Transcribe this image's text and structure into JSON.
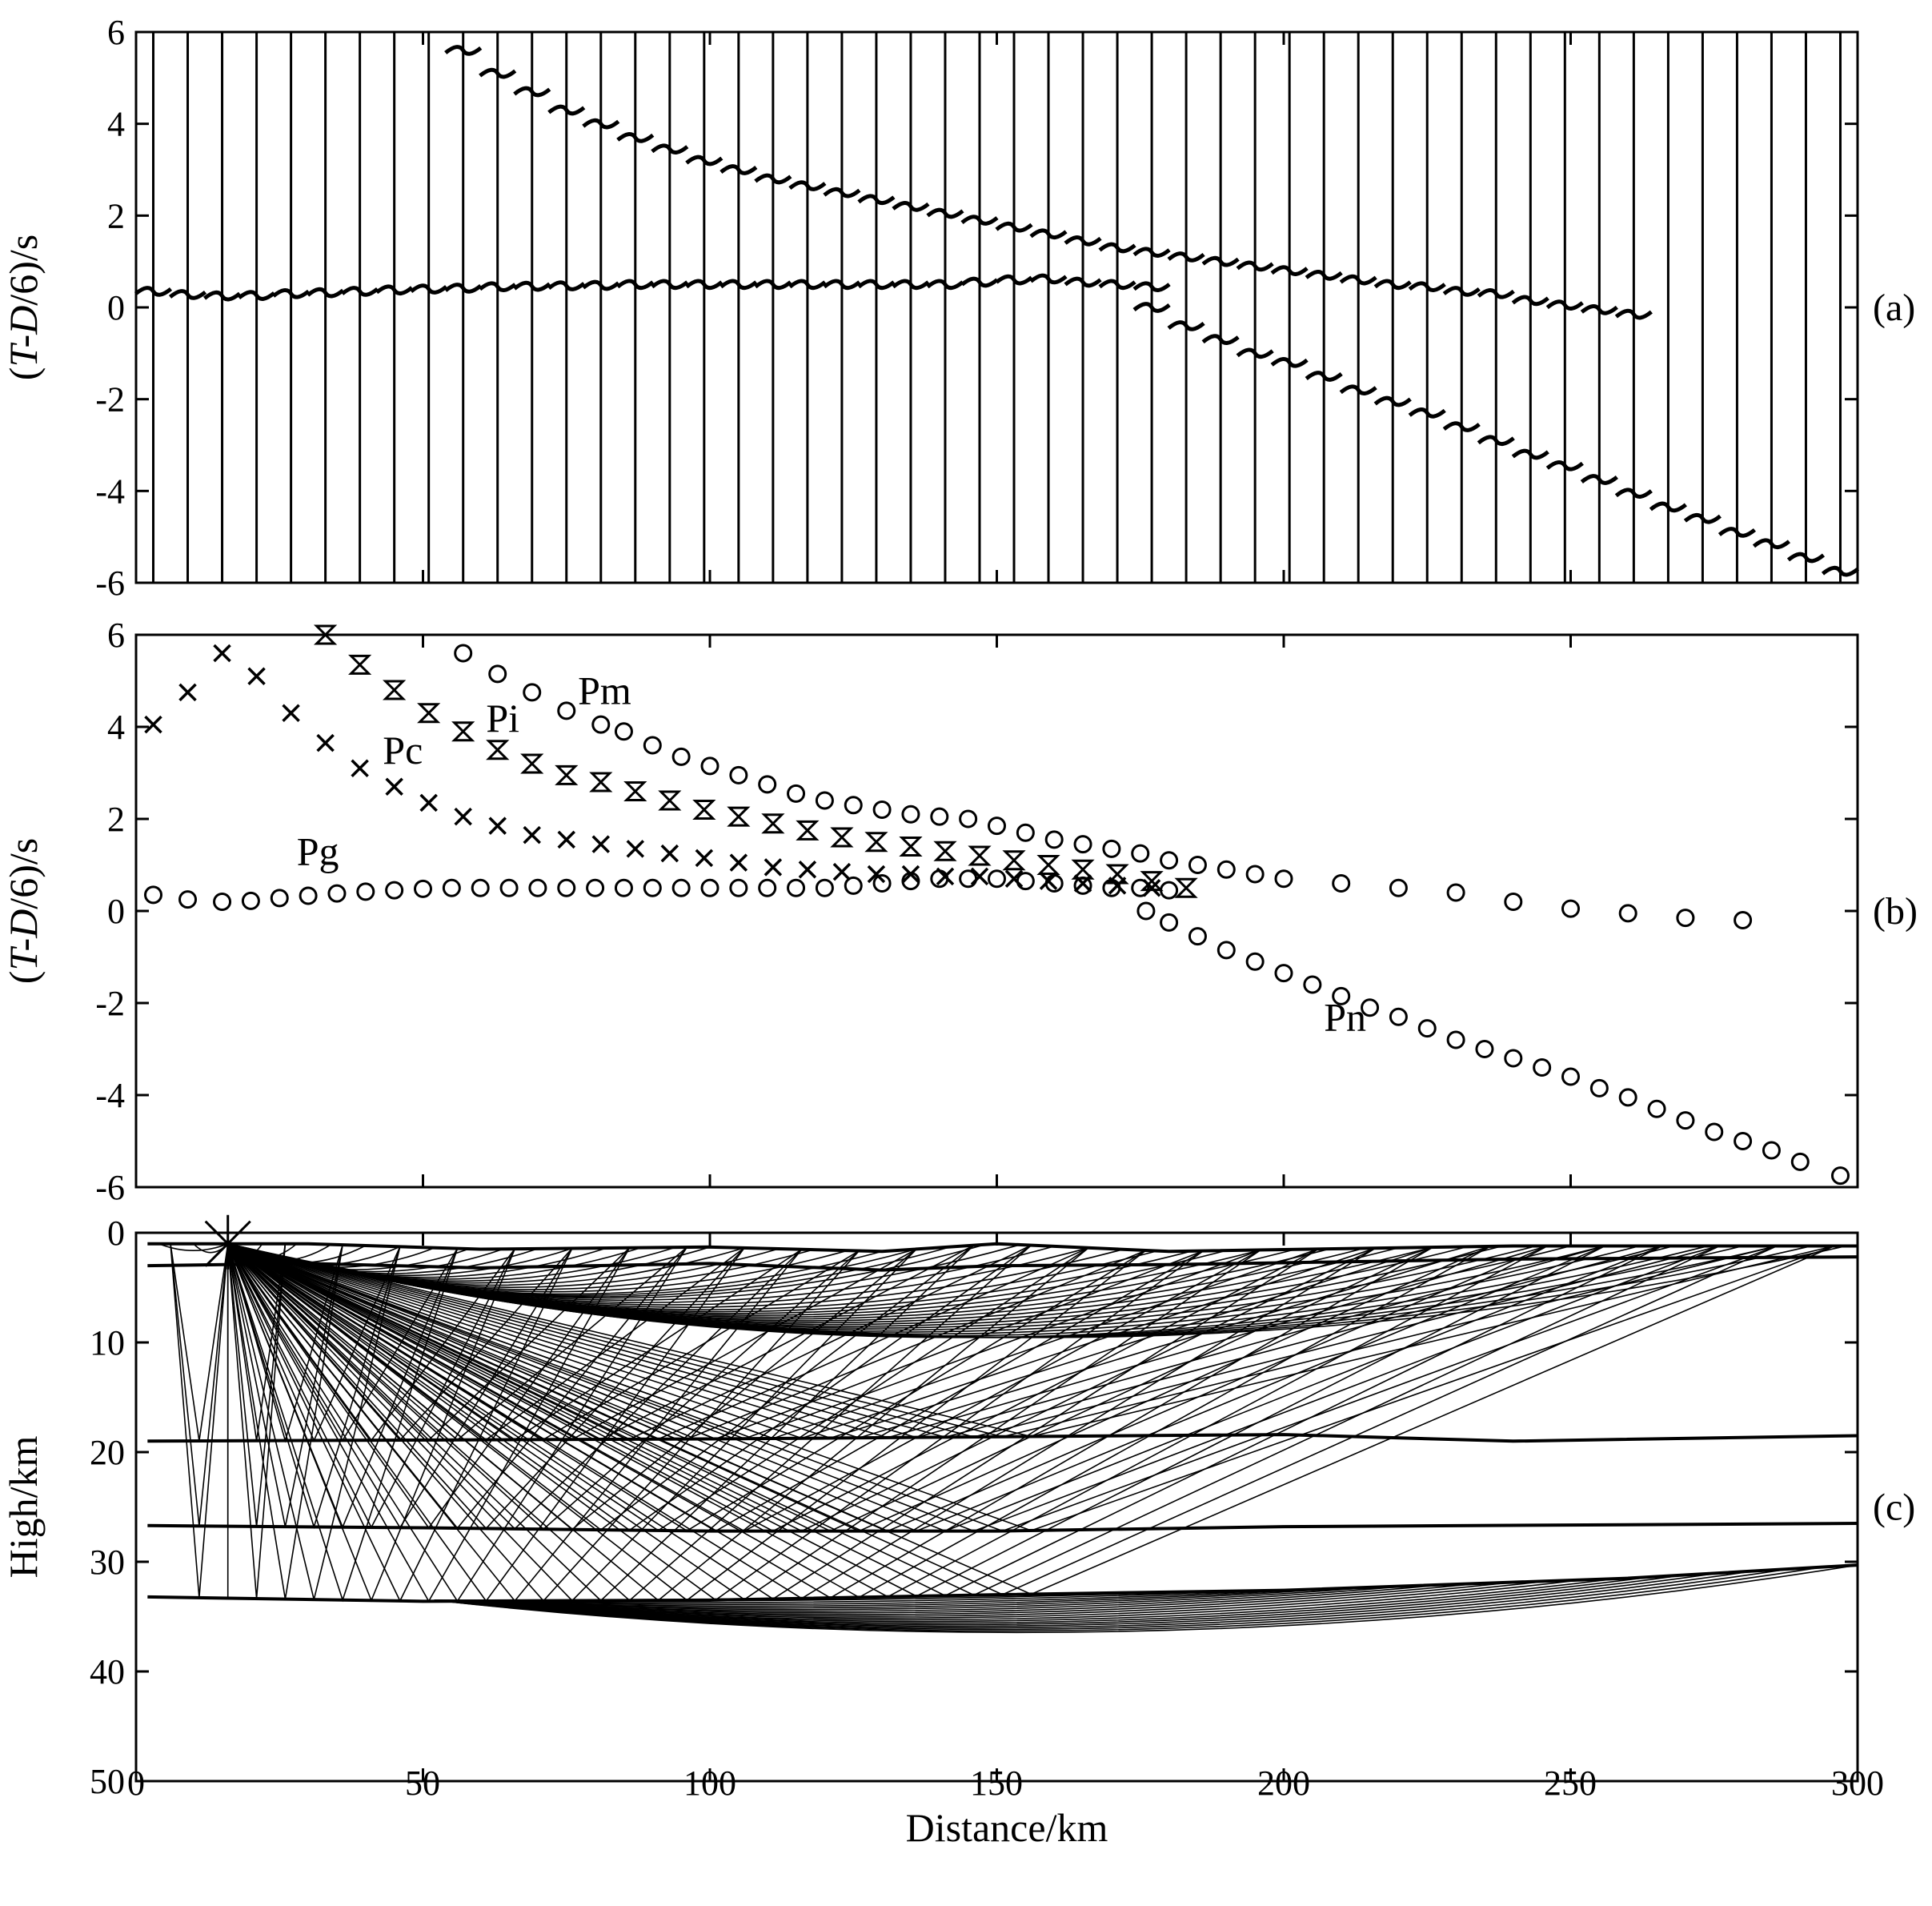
{
  "figure": {
    "xlabel": "Distance/km",
    "x_ticks": [
      "0",
      "50",
      "100",
      "150",
      "200",
      "250",
      "300"
    ]
  },
  "chart_data": [
    {
      "panel": "(a)",
      "type": "line",
      "ylabel_prefix": "(",
      "ylabel_italic": "T-D",
      "ylabel_suffix": "/6)/s",
      "xlim": [
        0,
        300
      ],
      "ylim": [
        -6,
        6
      ],
      "y_ticks": [
        "6",
        "4",
        "2",
        "0",
        "-2",
        "-4",
        "-6"
      ],
      "trace_offsets_km": [
        3,
        9,
        15,
        21,
        27,
        33,
        39,
        45,
        51,
        57,
        63,
        69,
        75,
        81,
        87,
        93,
        99,
        105,
        111,
        117,
        123,
        129,
        135,
        141,
        147,
        153,
        159,
        165,
        171,
        177,
        183,
        189,
        195,
        201,
        207,
        213,
        219,
        225,
        231,
        237,
        243,
        249,
        255,
        261,
        267,
        273,
        279,
        285,
        291,
        297
      ],
      "series": [
        {
          "x": [
            3,
            9,
            15,
            21,
            27,
            33,
            39,
            45,
            51,
            57,
            63,
            69,
            75,
            81,
            87,
            93,
            99,
            105,
            111,
            117,
            123,
            129,
            135,
            141,
            147,
            153,
            159,
            165,
            171,
            177
          ],
          "y": [
            0.35,
            0.28,
            0.25,
            0.26,
            0.3,
            0.32,
            0.35,
            0.38,
            0.4,
            0.42,
            0.45,
            0.46,
            0.47,
            0.48,
            0.5,
            0.5,
            0.5,
            0.5,
            0.5,
            0.5,
            0.5,
            0.5,
            0.5,
            0.5,
            0.55,
            0.6,
            0.62,
            0.55,
            0.5,
            0.45
          ]
        },
        {
          "x": [
            57,
            63,
            69,
            75,
            81,
            87,
            93,
            99,
            105,
            111,
            117,
            123,
            129,
            135,
            141,
            147,
            153,
            159,
            165,
            171,
            177,
            183,
            189,
            195,
            201,
            207,
            213,
            219,
            225,
            231,
            237,
            243,
            249,
            255,
            261
          ],
          "y": [
            5.6,
            5.1,
            4.7,
            4.3,
            4.0,
            3.7,
            3.45,
            3.2,
            3.0,
            2.8,
            2.65,
            2.5,
            2.35,
            2.2,
            2.05,
            1.9,
            1.75,
            1.6,
            1.45,
            1.3,
            1.2,
            1.1,
            1.0,
            0.9,
            0.8,
            0.7,
            0.6,
            0.5,
            0.45,
            0.35,
            0.3,
            0.15,
            0.05,
            -0.05,
            -0.15
          ]
        },
        {
          "x": [
            177,
            183,
            189,
            195,
            201,
            207,
            213,
            219,
            225,
            231,
            237,
            243,
            249,
            255,
            261,
            267,
            273,
            279,
            285,
            291,
            297
          ],
          "y": [
            0.0,
            -0.4,
            -0.7,
            -1.0,
            -1.2,
            -1.5,
            -1.8,
            -2.05,
            -2.3,
            -2.6,
            -2.9,
            -3.2,
            -3.45,
            -3.75,
            -4.05,
            -4.35,
            -4.6,
            -4.9,
            -5.15,
            -5.45,
            -5.75
          ]
        }
      ]
    },
    {
      "panel": "(b)",
      "type": "scatter",
      "ylabel_prefix": "(",
      "ylabel_italic": "T-D",
      "ylabel_suffix": "/6)/s",
      "xlim": [
        0,
        300
      ],
      "ylim": [
        -6,
        6
      ],
      "y_ticks": [
        "6",
        "4",
        "2",
        "0",
        "-2",
        "-4",
        "-6"
      ],
      "labels": [
        {
          "text": "Pg",
          "x": 28,
          "y": 1.0
        },
        {
          "text": "Pc",
          "x": 43,
          "y": 3.2
        },
        {
          "text": "Pi",
          "x": 61,
          "y": 3.9
        },
        {
          "text": "Pm",
          "x": 77,
          "y": 4.5
        },
        {
          "text": "Pn",
          "x": 207,
          "y": -2.6
        }
      ],
      "series": [
        {
          "name": "Pg",
          "marker": "circle",
          "x": [
            3,
            9,
            15,
            20,
            25,
            30,
            35,
            40,
            45,
            50,
            55,
            60,
            65,
            70,
            75,
            80,
            85,
            90,
            95,
            100,
            105,
            110,
            115,
            120,
            125,
            130,
            135,
            140,
            145,
            150,
            155,
            160,
            165,
            170,
            175,
            180
          ],
          "y": [
            0.35,
            0.25,
            0.2,
            0.22,
            0.28,
            0.33,
            0.38,
            0.42,
            0.45,
            0.48,
            0.5,
            0.5,
            0.5,
            0.5,
            0.5,
            0.5,
            0.5,
            0.5,
            0.5,
            0.5,
            0.5,
            0.5,
            0.5,
            0.5,
            0.55,
            0.6,
            0.65,
            0.7,
            0.7,
            0.7,
            0.65,
            0.6,
            0.55,
            0.5,
            0.5,
            0.45
          ]
        },
        {
          "name": "Pc",
          "marker": "cross",
          "x": [
            3,
            9,
            15,
            21,
            27,
            33,
            39,
            45,
            51,
            57,
            63,
            69,
            75,
            81,
            87,
            93,
            99,
            105,
            111,
            117,
            123,
            129,
            135,
            141,
            147,
            153,
            159,
            165,
            171,
            177
          ],
          "y": [
            4.05,
            4.75,
            5.6,
            5.1,
            4.3,
            3.65,
            3.1,
            2.7,
            2.35,
            2.05,
            1.85,
            1.65,
            1.55,
            1.45,
            1.35,
            1.25,
            1.15,
            1.05,
            0.95,
            0.9,
            0.85,
            0.8,
            0.8,
            0.75,
            0.75,
            0.7,
            0.65,
            0.6,
            0.55,
            0.5
          ]
        },
        {
          "name": "Pi",
          "marker": "hourglass",
          "x": [
            33,
            39,
            45,
            51,
            57,
            63,
            69,
            75,
            81,
            87,
            93,
            99,
            105,
            111,
            117,
            123,
            129,
            135,
            141,
            147,
            153,
            159,
            165,
            171,
            177,
            183
          ],
          "y": [
            6.0,
            5.35,
            4.8,
            4.3,
            3.9,
            3.5,
            3.2,
            2.95,
            2.8,
            2.6,
            2.4,
            2.2,
            2.05,
            1.9,
            1.75,
            1.6,
            1.5,
            1.4,
            1.3,
            1.2,
            1.1,
            1.0,
            0.9,
            0.8,
            0.65,
            0.5
          ]
        },
        {
          "name": "Pm",
          "marker": "circle",
          "x": [
            57,
            63,
            69,
            75,
            81,
            85,
            90,
            95,
            100,
            105,
            110,
            115,
            120,
            125,
            130,
            135,
            140,
            145,
            150,
            155,
            160,
            165,
            170,
            175,
            180,
            185,
            190,
            195,
            200,
            210,
            220,
            230,
            240,
            250,
            260,
            270,
            280
          ],
          "y": [
            5.6,
            5.15,
            4.75,
            4.35,
            4.05,
            3.9,
            3.6,
            3.35,
            3.15,
            2.95,
            2.75,
            2.55,
            2.4,
            2.3,
            2.2,
            2.1,
            2.05,
            2.0,
            1.85,
            1.7,
            1.55,
            1.45,
            1.35,
            1.25,
            1.1,
            1.0,
            0.9,
            0.8,
            0.7,
            0.6,
            0.5,
            0.4,
            0.2,
            0.05,
            -0.05,
            -0.15,
            -0.2
          ]
        },
        {
          "name": "Pn",
          "marker": "circle",
          "x": [
            176,
            180,
            185,
            190,
            195,
            200,
            205,
            210,
            215,
            220,
            225,
            230,
            235,
            240,
            245,
            250,
            255,
            260,
            265,
            270,
            275,
            280,
            285,
            290,
            297
          ],
          "y": [
            0.0,
            -0.25,
            -0.55,
            -0.85,
            -1.1,
            -1.35,
            -1.6,
            -1.85,
            -2.1,
            -2.3,
            -2.55,
            -2.8,
            -3.0,
            -3.2,
            -3.4,
            -3.6,
            -3.85,
            -4.05,
            -4.3,
            -4.55,
            -4.8,
            -5.0,
            -5.2,
            -5.45,
            -5.75
          ]
        }
      ]
    },
    {
      "panel": "(c)",
      "type": "line",
      "ylabel": "High/km",
      "xlim": [
        0,
        300
      ],
      "ylim": [
        50,
        0
      ],
      "y_ticks": [
        "0",
        "10",
        "20",
        "30",
        "40",
        "50"
      ],
      "source_km": [
        16,
        1
      ],
      "interfaces": [
        {
          "x": [
            2,
            30,
            60,
            100,
            130,
            150,
            180,
            240,
            300
          ],
          "y": [
            1,
            1,
            1.5,
            1.3,
            1.7,
            1.0,
            1.7,
            1.2,
            1.2
          ]
        },
        {
          "x": [
            2,
            30,
            60,
            100,
            130,
            150,
            180,
            240,
            300
          ],
          "y": [
            3.0,
            2.8,
            3.2,
            2.8,
            3.4,
            3.0,
            2.9,
            2.4,
            2.2
          ]
        },
        {
          "x": [
            2,
            100,
            200,
            240,
            300
          ],
          "y": [
            19.0,
            18.8,
            18.4,
            19.0,
            18.5
          ]
        },
        {
          "x": [
            2,
            50,
            100,
            150,
            200,
            300
          ],
          "y": [
            26.7,
            26.9,
            27.2,
            27.2,
            26.8,
            26.5
          ]
        },
        {
          "x": [
            2,
            50,
            100,
            150,
            200,
            260,
            300
          ],
          "y": [
            33.2,
            33.6,
            33.5,
            33.0,
            32.6,
            31.5,
            30.3
          ]
        }
      ]
    }
  ]
}
